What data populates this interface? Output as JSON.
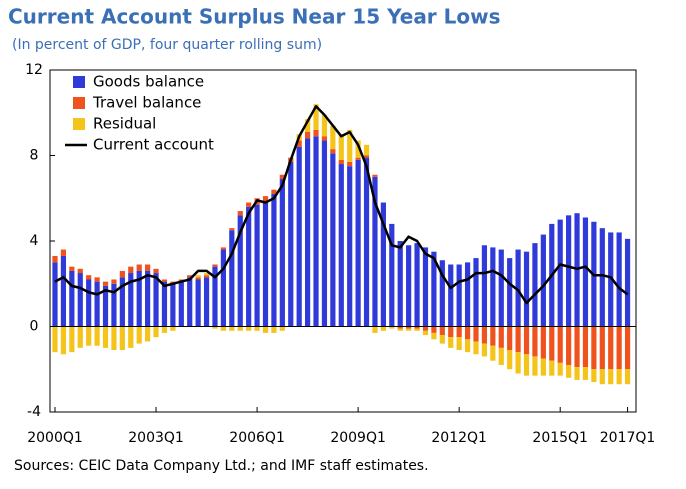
{
  "chart_data": {
    "type": "bar",
    "title": "Current Account Surplus Near 15 Year Lows",
    "subtitle": "(In percent of GDP, four quarter rolling sum)",
    "source": "Sources: CEIC Data Company Ltd.; and IMF staff estimates.",
    "categories": [
      "2000Q1",
      null,
      null,
      null,
      null,
      null,
      null,
      null,
      null,
      null,
      null,
      null,
      "2003Q1",
      null,
      null,
      null,
      null,
      null,
      null,
      null,
      null,
      null,
      null,
      null,
      "2006Q1",
      null,
      null,
      null,
      null,
      null,
      null,
      null,
      null,
      null,
      null,
      null,
      "2009Q1",
      null,
      null,
      null,
      null,
      null,
      null,
      null,
      null,
      null,
      null,
      null,
      "2012Q1",
      null,
      null,
      null,
      null,
      null,
      null,
      null,
      null,
      null,
      null,
      null,
      "2015Q1",
      null,
      null,
      null,
      null,
      null,
      null,
      null,
      "2017Q1"
    ],
    "series": [
      {
        "name": "Goods balance",
        "color": "#2f3ad8",
        "values": [
          3.0,
          3.3,
          2.6,
          2.5,
          2.2,
          2.1,
          1.9,
          2.0,
          2.3,
          2.5,
          2.6,
          2.6,
          2.5,
          2.1,
          2.0,
          2.1,
          2.3,
          2.2,
          2.3,
          2.8,
          3.6,
          4.5,
          5.2,
          5.6,
          5.7,
          5.8,
          6.2,
          6.9,
          7.7,
          8.4,
          8.8,
          8.9,
          8.7,
          8.1,
          7.6,
          7.5,
          7.8,
          7.9,
          7.0,
          5.8,
          4.8,
          4.0,
          3.8,
          3.9,
          3.7,
          3.5,
          3.1,
          2.9,
          2.9,
          3.0,
          3.2,
          3.8,
          3.7,
          3.6,
          3.2,
          3.6,
          3.5,
          3.9,
          4.3,
          4.8,
          5.0,
          5.2,
          5.3,
          5.1,
          4.9,
          4.6,
          4.4,
          4.4,
          4.1
        ]
      },
      {
        "name": "Travel balance",
        "color": "#f0521e",
        "values": [
          0.3,
          0.3,
          0.2,
          0.2,
          0.2,
          0.2,
          0.2,
          0.2,
          0.3,
          0.3,
          0.3,
          0.3,
          0.2,
          0.1,
          0.1,
          0.1,
          0.1,
          0.1,
          0.1,
          0.1,
          0.1,
          0.1,
          0.2,
          0.2,
          0.3,
          0.3,
          0.2,
          0.2,
          0.2,
          0.3,
          0.3,
          0.3,
          0.2,
          0.2,
          0.2,
          0.2,
          0.1,
          0.1,
          0.1,
          0.0,
          0.0,
          -0.1,
          -0.1,
          -0.1,
          -0.2,
          -0.3,
          -0.4,
          -0.5,
          -0.5,
          -0.6,
          -0.7,
          -0.8,
          -0.9,
          -1.0,
          -1.1,
          -1.2,
          -1.3,
          -1.4,
          -1.5,
          -1.6,
          -1.7,
          -1.8,
          -1.9,
          -1.9,
          -2.0,
          -2.0,
          -2.0,
          -2.0,
          -2.0
        ]
      },
      {
        "name": "Residual",
        "color": "#f5c41a",
        "values": [
          -1.2,
          -1.3,
          -1.2,
          -1.0,
          -0.9,
          -0.9,
          -1.0,
          -1.1,
          -1.1,
          -1.0,
          -0.8,
          -0.7,
          -0.5,
          -0.3,
          -0.2,
          0.0,
          0.0,
          0.1,
          0.1,
          -0.1,
          -0.2,
          -0.2,
          -0.2,
          -0.2,
          -0.2,
          -0.3,
          -0.3,
          -0.2,
          0.0,
          0.3,
          0.6,
          1.2,
          1.0,
          1.1,
          1.2,
          1.5,
          0.8,
          0.5,
          -0.3,
          -0.2,
          -0.1,
          -0.1,
          -0.1,
          -0.1,
          -0.2,
          -0.3,
          -0.4,
          -0.5,
          -0.6,
          -0.6,
          -0.6,
          -0.6,
          -0.7,
          -0.8,
          -0.9,
          -1.0,
          -1.0,
          -0.9,
          -0.8,
          -0.7,
          -0.6,
          -0.6,
          -0.6,
          -0.6,
          -0.6,
          -0.7,
          -0.7,
          -0.7,
          -0.7
        ]
      },
      {
        "name": "Current account",
        "color": "#000000",
        "type": "line",
        "values": [
          2.1,
          2.3,
          1.9,
          1.8,
          1.6,
          1.5,
          1.7,
          1.6,
          1.9,
          2.1,
          2.2,
          2.4,
          2.3,
          1.9,
          2.0,
          2.1,
          2.2,
          2.6,
          2.6,
          2.3,
          2.7,
          3.4,
          4.4,
          5.3,
          5.9,
          5.8,
          6.0,
          6.6,
          7.8,
          8.9,
          9.6,
          10.3,
          9.9,
          9.4,
          8.9,
          9.1,
          8.5,
          7.5,
          5.8,
          4.8,
          3.8,
          3.7,
          4.2,
          4.0,
          3.4,
          3.2,
          2.4,
          1.8,
          2.1,
          2.2,
          2.5,
          2.5,
          2.6,
          2.4,
          2.0,
          1.7,
          1.1,
          1.5,
          1.9,
          2.4,
          2.9,
          2.8,
          2.7,
          2.8,
          2.4,
          2.4,
          2.3,
          1.8,
          1.5
        ]
      }
    ],
    "ylim": [
      -4,
      12
    ],
    "yticks": [
      -4,
      0,
      4,
      8,
      12
    ],
    "grid": false,
    "legend": "top-left"
  }
}
